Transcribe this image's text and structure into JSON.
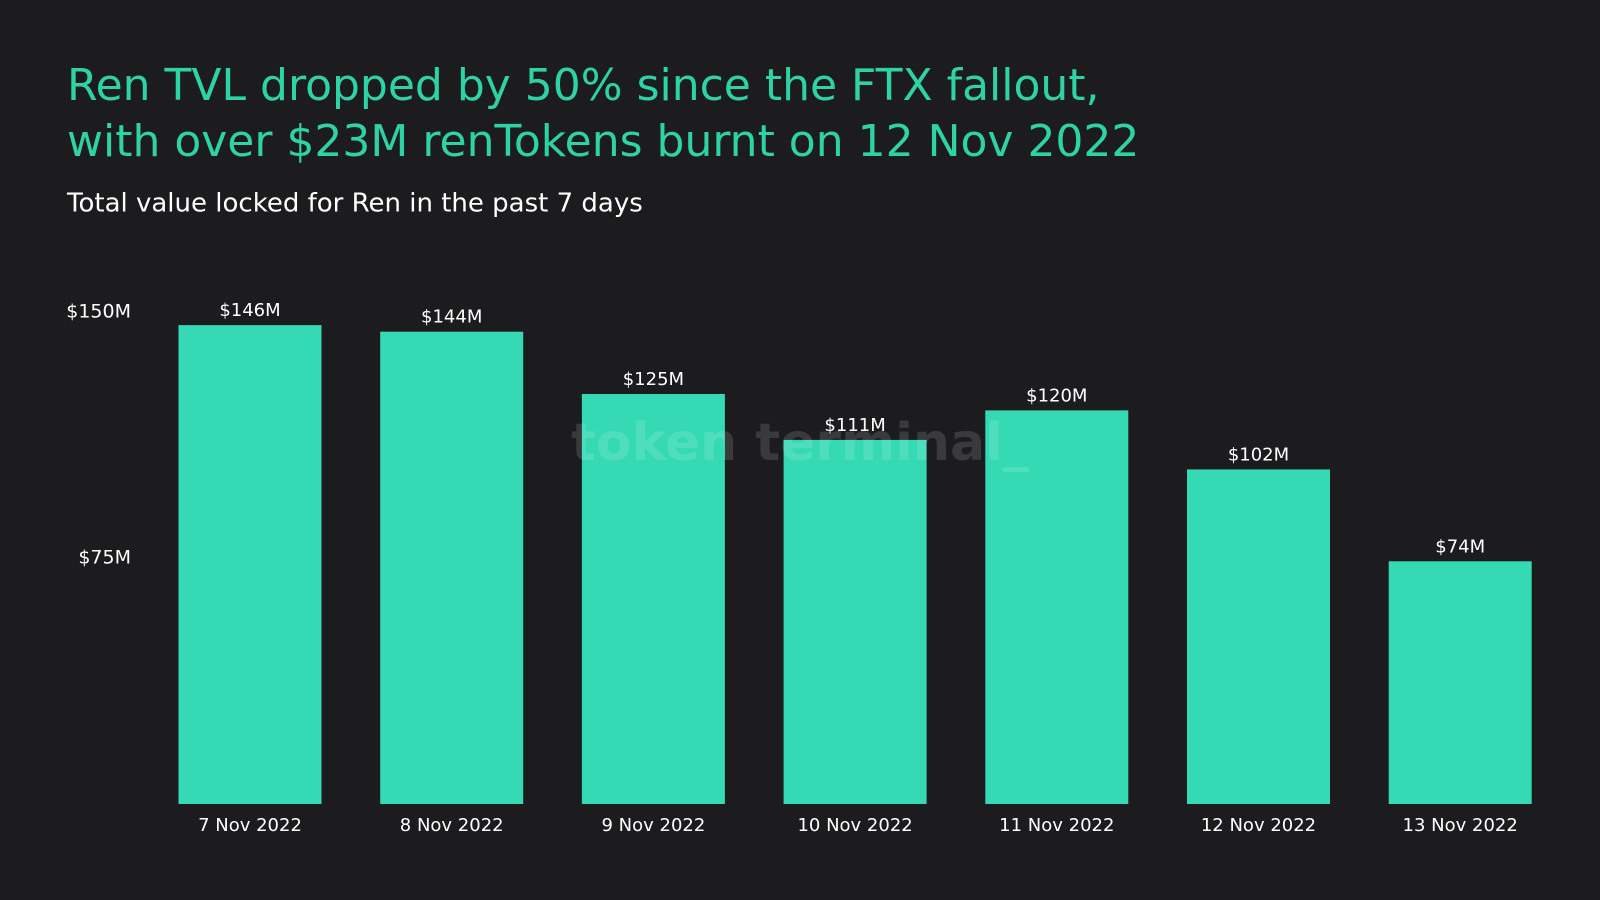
{
  "chart_data": {
    "type": "bar",
    "title": [
      "Ren TVL dropped by 50% since the FTX fallout,",
      "with over $23M renTokens burnt on 12 Nov 2022"
    ],
    "subtitle": "Total value locked for Ren in the past 7 days",
    "watermark": "token terminal_",
    "categories": [
      "7 Nov 2022",
      "8 Nov 2022",
      "9 Nov 2022",
      "10 Nov 2022",
      "11 Nov 2022",
      "12 Nov 2022",
      "13 Nov 2022"
    ],
    "values": [
      146,
      144,
      125,
      111,
      120,
      102,
      74
    ],
    "value_labels": [
      "$146M",
      "$144M",
      "$125M",
      "$111M",
      "$120M",
      "$102M",
      "$74M"
    ],
    "color": "#35d9b4",
    "ylim": [
      0,
      150
    ],
    "yticks": [
      {
        "value": 75,
        "label": "$75M"
      },
      {
        "value": 150,
        "label": "$150M"
      }
    ],
    "grid": false
  }
}
